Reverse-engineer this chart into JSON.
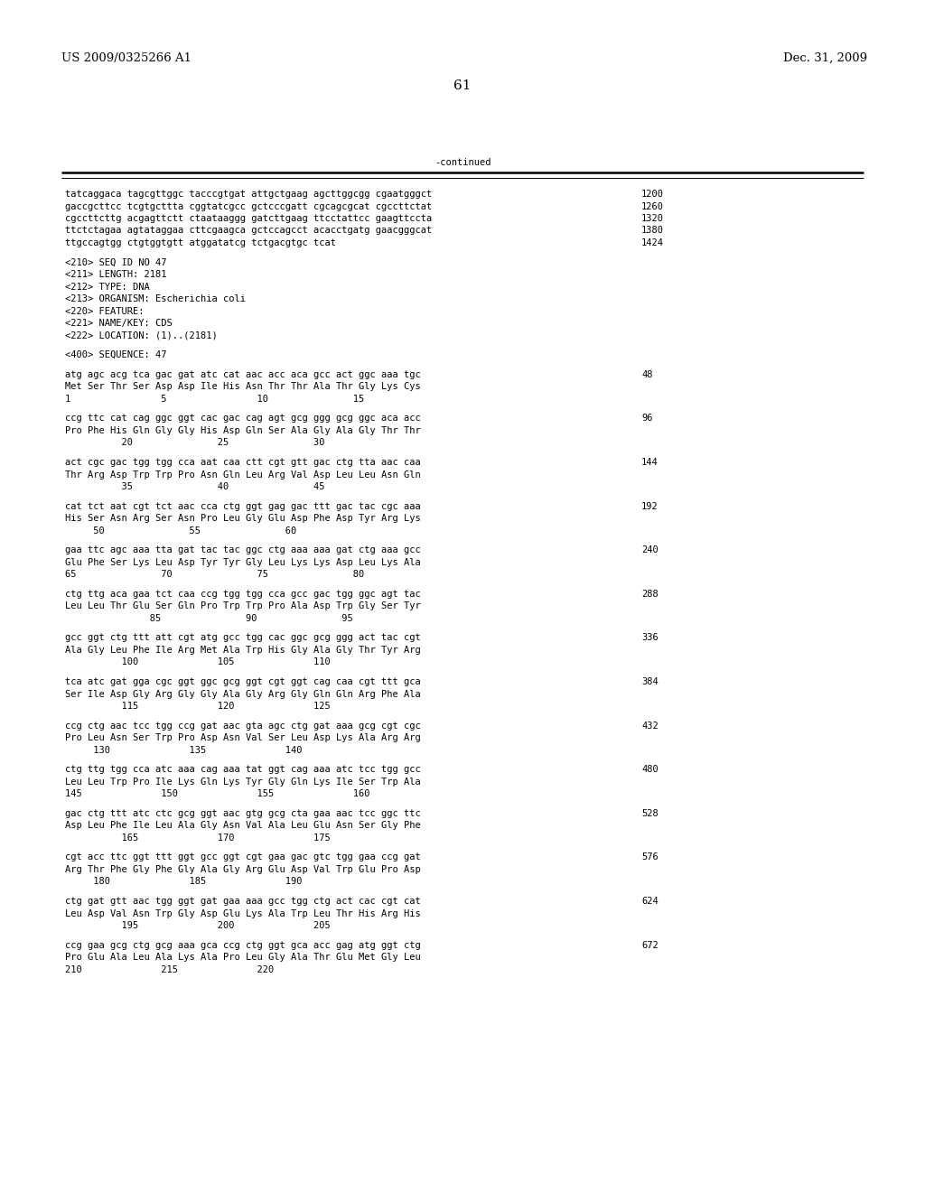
{
  "header_left": "US 2009/0325266 A1",
  "header_right": "Dec. 31, 2009",
  "page_number": "61",
  "continued_label": "-continued",
  "background_color": "#ffffff",
  "text_color": "#000000",
  "font_size_header": 9.5,
  "font_size_page": 11,
  "font_size_mono": 7.5,
  "content_lines": [
    {
      "text": "tatcaggaca tagcgttggc tacccgtgat attgctgaag agcttggcgg cgaatgggct",
      "num": "1200"
    },
    {
      "text": "gaccgcttcc tcgtgcttta cggtatcgcc gctcccgatt cgcagcgcat cgccttctat",
      "num": "1260"
    },
    {
      "text": "cgccttcttg acgagttctt ctaataaggg gatcttgaag ttcctattcc gaagttccta",
      "num": "1320"
    },
    {
      "text": "ttctctagaa agtataggaa cttcgaagca gctccagcct acacctgatg gaacgggcat",
      "num": "1380"
    },
    {
      "text": "ttgccagtgg ctgtggtgtt atggatatcg tctgacgtgc tcat",
      "num": "1424"
    },
    {
      "text": "",
      "num": ""
    },
    {
      "text": "<210> SEQ ID NO 47",
      "num": ""
    },
    {
      "text": "<211> LENGTH: 2181",
      "num": ""
    },
    {
      "text": "<212> TYPE: DNA",
      "num": ""
    },
    {
      "text": "<213> ORGANISM: Escherichia coli",
      "num": ""
    },
    {
      "text": "<220> FEATURE:",
      "num": ""
    },
    {
      "text": "<221> NAME/KEY: CDS",
      "num": ""
    },
    {
      "text": "<222> LOCATION: (1)..(2181)",
      "num": ""
    },
    {
      "text": "",
      "num": ""
    },
    {
      "text": "<400> SEQUENCE: 47",
      "num": ""
    },
    {
      "text": "",
      "num": ""
    },
    {
      "text": "atg agc acg tca gac gat atc cat aac acc aca gcc act ggc aaa tgc",
      "num": "48"
    },
    {
      "text": "Met Ser Thr Ser Asp Asp Ile His Asn Thr Thr Ala Thr Gly Lys Cys",
      "num": ""
    },
    {
      "text": "1                5                10               15",
      "num": ""
    },
    {
      "text": "",
      "num": ""
    },
    {
      "text": "ccg ttc cat cag ggc ggt cac gac cag agt gcg ggg gcg ggc aca acc",
      "num": "96"
    },
    {
      "text": "Pro Phe His Gln Gly Gly His Asp Gln Ser Ala Gly Ala Gly Thr Thr",
      "num": ""
    },
    {
      "text": "          20               25               30",
      "num": ""
    },
    {
      "text": "",
      "num": ""
    },
    {
      "text": "act cgc gac tgg tgg cca aat caa ctt cgt gtt gac ctg tta aac caa",
      "num": "144"
    },
    {
      "text": "Thr Arg Asp Trp Trp Pro Asn Gln Leu Arg Val Asp Leu Leu Asn Gln",
      "num": ""
    },
    {
      "text": "          35               40               45",
      "num": ""
    },
    {
      "text": "",
      "num": ""
    },
    {
      "text": "cat tct aat cgt tct aac cca ctg ggt gag gac ttt gac tac cgc aaa",
      "num": "192"
    },
    {
      "text": "His Ser Asn Arg Ser Asn Pro Leu Gly Glu Asp Phe Asp Tyr Arg Lys",
      "num": ""
    },
    {
      "text": "     50               55               60",
      "num": ""
    },
    {
      "text": "",
      "num": ""
    },
    {
      "text": "gaa ttc agc aaa tta gat tac tac ggc ctg aaa aaa gat ctg aaa gcc",
      "num": "240"
    },
    {
      "text": "Glu Phe Ser Lys Leu Asp Tyr Tyr Gly Leu Lys Lys Asp Leu Lys Ala",
      "num": ""
    },
    {
      "text": "65               70               75               80",
      "num": ""
    },
    {
      "text": "",
      "num": ""
    },
    {
      "text": "ctg ttg aca gaa tct caa ccg tgg tgg cca gcc gac tgg ggc agt tac",
      "num": "288"
    },
    {
      "text": "Leu Leu Thr Glu Ser Gln Pro Trp Trp Pro Ala Asp Trp Gly Ser Tyr",
      "num": ""
    },
    {
      "text": "               85               90               95",
      "num": ""
    },
    {
      "text": "",
      "num": ""
    },
    {
      "text": "gcc ggt ctg ttt att cgt atg gcc tgg cac ggc gcg ggg act tac cgt",
      "num": "336"
    },
    {
      "text": "Ala Gly Leu Phe Ile Arg Met Ala Trp His Gly Ala Gly Thr Tyr Arg",
      "num": ""
    },
    {
      "text": "          100              105              110",
      "num": ""
    },
    {
      "text": "",
      "num": ""
    },
    {
      "text": "tca atc gat gga cgc ggt ggc gcg ggt cgt ggt cag caa cgt ttt gca",
      "num": "384"
    },
    {
      "text": "Ser Ile Asp Gly Arg Gly Gly Ala Gly Arg Gly Gln Gln Arg Phe Ala",
      "num": ""
    },
    {
      "text": "          115              120              125",
      "num": ""
    },
    {
      "text": "",
      "num": ""
    },
    {
      "text": "ccg ctg aac tcc tgg ccg gat aac gta agc ctg gat aaa gcg cgt cgc",
      "num": "432"
    },
    {
      "text": "Pro Leu Asn Ser Trp Pro Asp Asn Val Ser Leu Asp Lys Ala Arg Arg",
      "num": ""
    },
    {
      "text": "     130              135              140",
      "num": ""
    },
    {
      "text": "",
      "num": ""
    },
    {
      "text": "ctg ttg tgg cca atc aaa cag aaa tat ggt cag aaa atc tcc tgg gcc",
      "num": "480"
    },
    {
      "text": "Leu Leu Trp Pro Ile Lys Gln Lys Tyr Gly Gln Lys Ile Ser Trp Ala",
      "num": ""
    },
    {
      "text": "145              150              155              160",
      "num": ""
    },
    {
      "text": "",
      "num": ""
    },
    {
      "text": "gac ctg ttt atc ctc gcg ggt aac gtg gcg cta gaa aac tcc ggc ttc",
      "num": "528"
    },
    {
      "text": "Asp Leu Phe Ile Leu Ala Gly Asn Val Ala Leu Glu Asn Ser Gly Phe",
      "num": ""
    },
    {
      "text": "          165              170              175",
      "num": ""
    },
    {
      "text": "",
      "num": ""
    },
    {
      "text": "cgt acc ttc ggt ttt ggt gcc ggt cgt gaa gac gtc tgg gaa ccg gat",
      "num": "576"
    },
    {
      "text": "Arg Thr Phe Gly Phe Gly Ala Gly Arg Glu Asp Val Trp Glu Pro Asp",
      "num": ""
    },
    {
      "text": "     180              185              190",
      "num": ""
    },
    {
      "text": "",
      "num": ""
    },
    {
      "text": "ctg gat gtt aac tgg ggt gat gaa aaa gcc tgg ctg act cac cgt cat",
      "num": "624"
    },
    {
      "text": "Leu Asp Val Asn Trp Gly Asp Glu Lys Ala Trp Leu Thr His Arg His",
      "num": ""
    },
    {
      "text": "          195              200              205",
      "num": ""
    },
    {
      "text": "",
      "num": ""
    },
    {
      "text": "ccg gaa gcg ctg gcg aaa gca ccg ctg ggt gca acc gag atg ggt ctg",
      "num": "672"
    },
    {
      "text": "Pro Glu Ala Leu Ala Lys Ala Pro Leu Gly Ala Thr Glu Met Gly Leu",
      "num": ""
    },
    {
      "text": "210              215              220",
      "num": ""
    }
  ]
}
